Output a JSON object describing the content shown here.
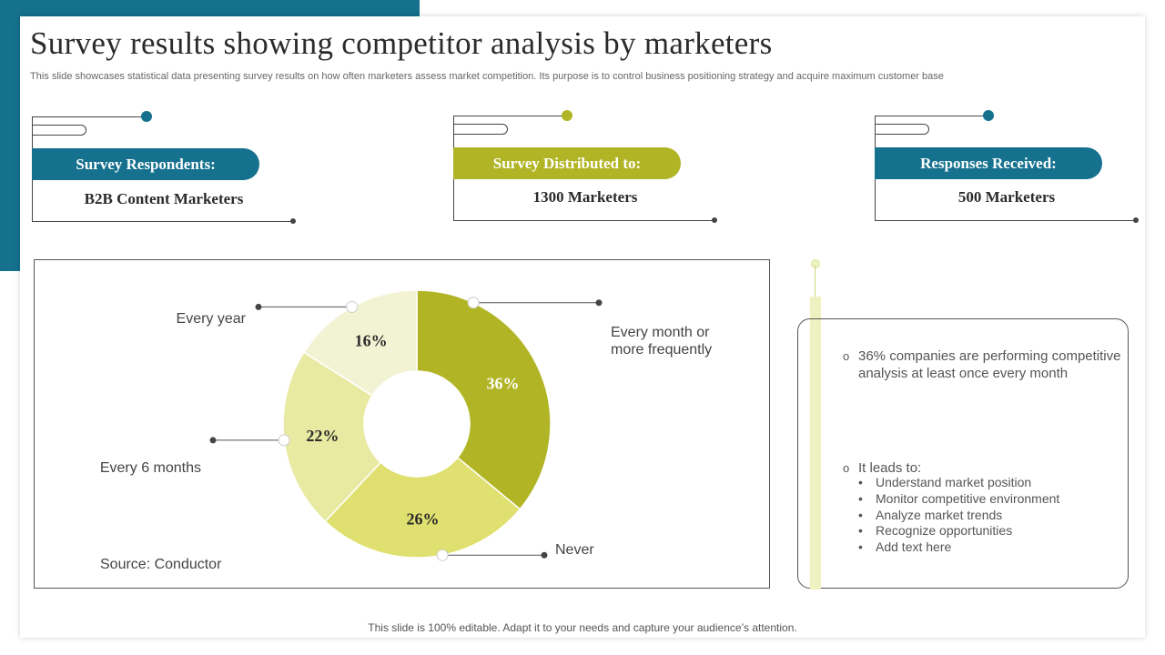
{
  "title": "Survey results showing competitor analysis by marketers",
  "subtitle": "This slide showcases statistical data presenting survey results on how often marketers assess market competition. Its purpose is to control business positioning strategy and acquire maximum customer base",
  "cards": [
    {
      "label": "Survey Respondents:",
      "value": "B2B Content Marketers",
      "color": "#15718e"
    },
    {
      "label": "Survey Distributed to:",
      "value": "1300 Marketers",
      "color": "#b1b525"
    },
    {
      "label": "Responses Received:",
      "value": "500 Marketers",
      "color": "#15718e"
    }
  ],
  "chart_data": {
    "type": "pie",
    "subtype": "donut",
    "categories": [
      "Every month or more frequently",
      "Never",
      "Every 6 months",
      "Every year"
    ],
    "values": [
      36,
      26,
      22,
      16
    ],
    "labels": [
      "36%",
      "26%",
      "22%",
      "16%"
    ],
    "colors": [
      "#b1b525",
      "#dfe06f",
      "#e8eaa2",
      "#f2f3d3"
    ],
    "legend": "callouts",
    "source": "Source: Conductor"
  },
  "insights": {
    "point1": "36% companies are performing competitive analysis at least once every month",
    "point2_title": "It leads to:",
    "point2_items": [
      "Understand market position",
      "Monitor competitive environment",
      "Analyze market trends",
      "Recognize opportunities",
      "Add text here"
    ],
    "bullet_symbol": "o"
  },
  "footer": "This slide is 100% editable. Adapt it to your needs and capture your audience’s attention."
}
